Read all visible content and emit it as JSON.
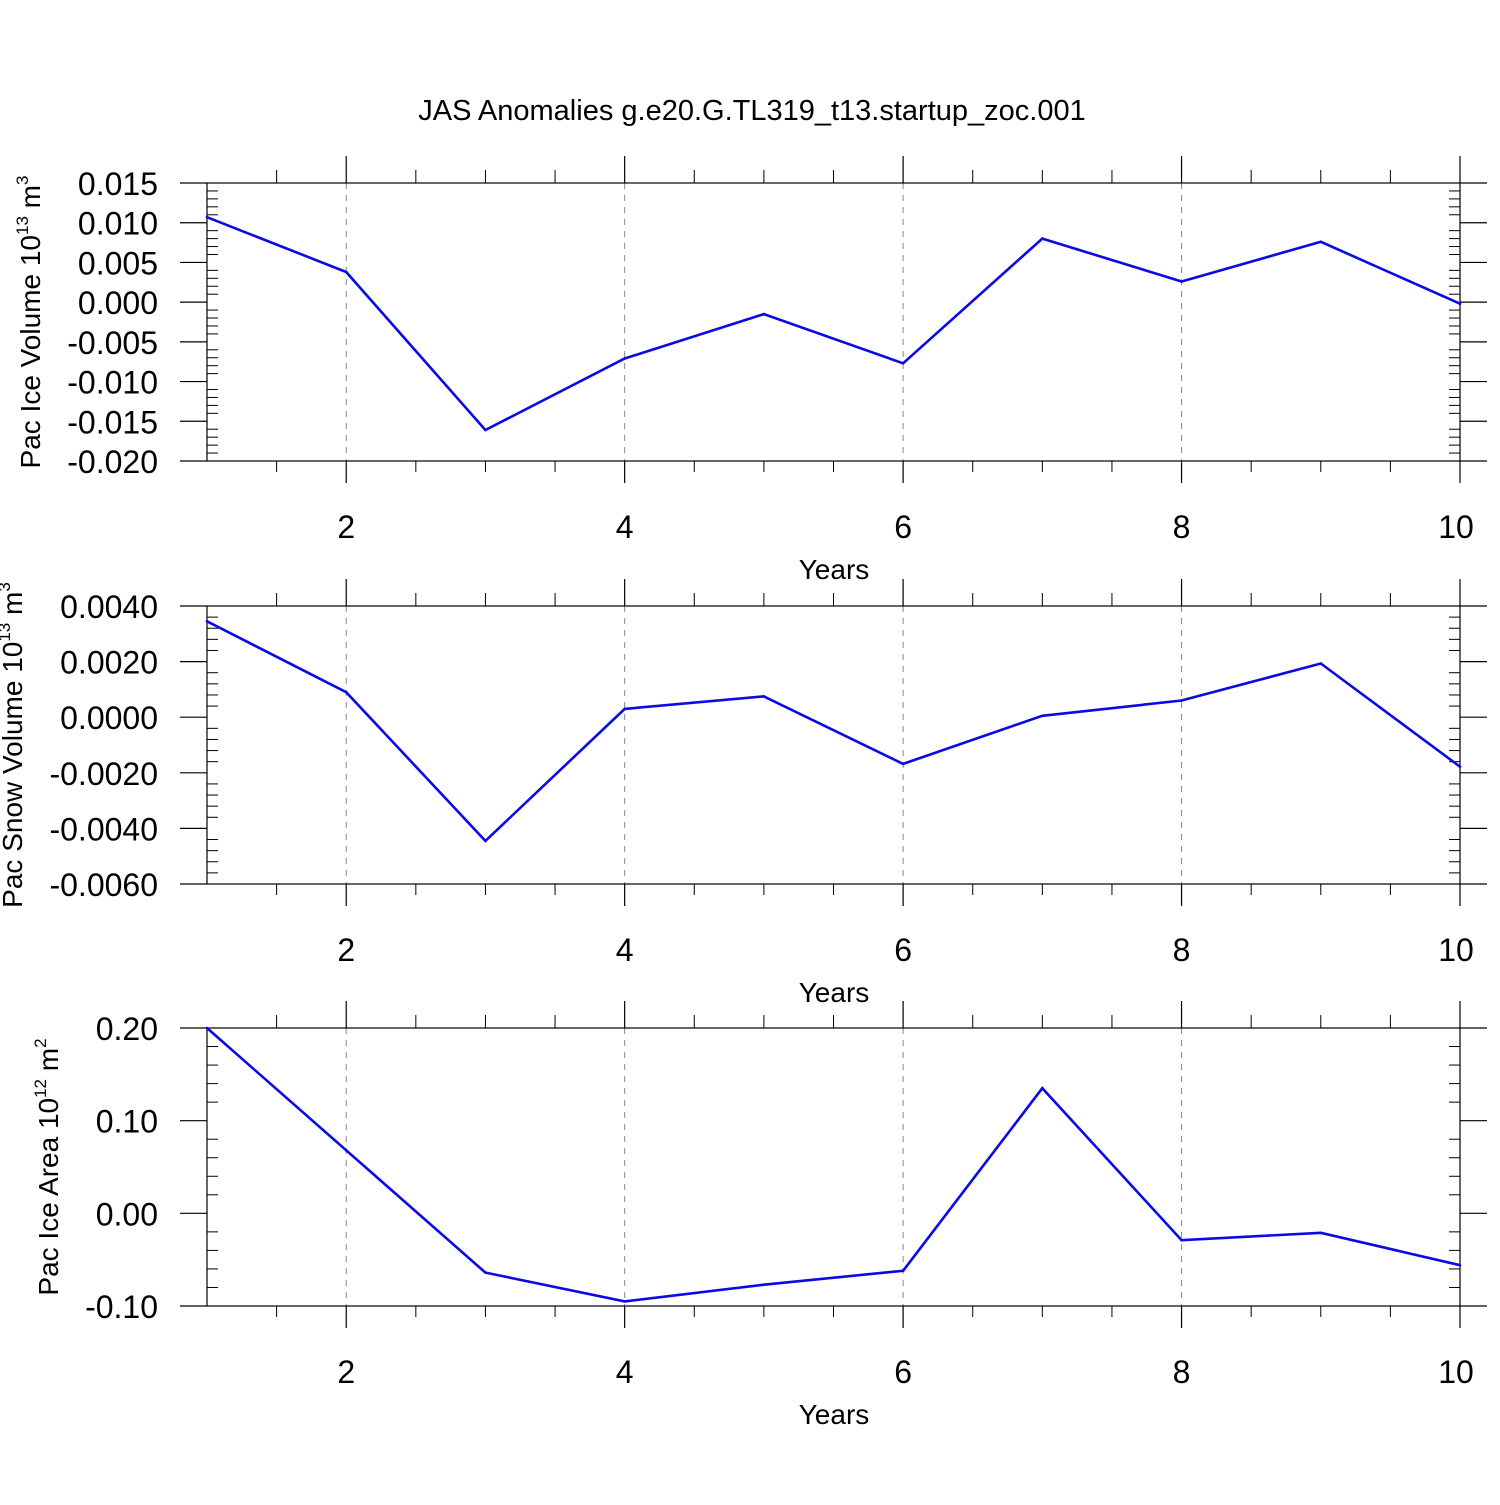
{
  "title": "JAS Anomalies g.e20.G.TL319_t13.startup_zoc.001",
  "line_color": "#0a0ae6",
  "chart_data": [
    {
      "type": "line",
      "xlabel": "Years",
      "ylabel_parts": [
        "Pac Ice Volume 10",
        "13",
        " m",
        "3"
      ],
      "xlim": [
        1,
        10
      ],
      "ylim": [
        -0.02,
        0.015
      ],
      "x_ticks": [
        2,
        4,
        6,
        8,
        10
      ],
      "y_ticks": [
        -0.02,
        -0.015,
        -0.01,
        -0.005,
        0.0,
        0.005,
        0.01,
        0.015
      ],
      "y_tick_labels": [
        "-0.020",
        "-0.015",
        "-0.010",
        "-0.005",
        "0.000",
        "0.005",
        "0.010",
        "0.015"
      ],
      "y_minor_step": 0.001,
      "x": [
        1,
        2,
        3,
        4,
        5,
        6,
        7,
        8,
        9,
        10
      ],
      "values": [
        0.0107,
        0.0038,
        -0.0161,
        -0.0071,
        -0.0015,
        -0.0077,
        0.008,
        0.0026,
        0.0076,
        -0.0002
      ]
    },
    {
      "type": "line",
      "xlabel": "Years",
      "ylabel_parts": [
        "Pac Snow Volume 10",
        "13",
        " m",
        "3"
      ],
      "xlim": [
        1,
        10
      ],
      "ylim": [
        -0.006,
        0.004
      ],
      "x_ticks": [
        2,
        4,
        6,
        8,
        10
      ],
      "y_ticks": [
        -0.006,
        -0.004,
        -0.002,
        0.0,
        0.002,
        0.004
      ],
      "y_tick_labels": [
        "-0.0060",
        "-0.0040",
        "-0.0020",
        "0.0000",
        "0.0020",
        "0.0040"
      ],
      "y_minor_step": 0.0004,
      "x": [
        1,
        2,
        3,
        4,
        5,
        6,
        7,
        8,
        9,
        10
      ],
      "values": [
        0.00345,
        0.0009,
        -0.00445,
        0.0003,
        0.00075,
        -0.00168,
        5e-05,
        0.0006,
        0.00193,
        -0.00178
      ]
    },
    {
      "type": "line",
      "xlabel": "Years",
      "ylabel_parts": [
        "Pac Ice Area 10",
        "12",
        " m",
        "2"
      ],
      "xlim": [
        1,
        10
      ],
      "ylim": [
        -0.1,
        0.2
      ],
      "x_ticks": [
        2,
        4,
        6,
        8,
        10
      ],
      "y_ticks": [
        -0.1,
        0.0,
        0.1,
        0.2
      ],
      "y_tick_labels": [
        "-0.10",
        "0.00",
        "0.10",
        "0.20"
      ],
      "y_minor_step": 0.02,
      "x": [
        1,
        2,
        3,
        4,
        5,
        6,
        7,
        8,
        9,
        10
      ],
      "values": [
        0.2,
        0.068,
        -0.064,
        -0.095,
        -0.077,
        -0.062,
        0.135,
        -0.029,
        -0.021,
        -0.056
      ]
    }
  ]
}
